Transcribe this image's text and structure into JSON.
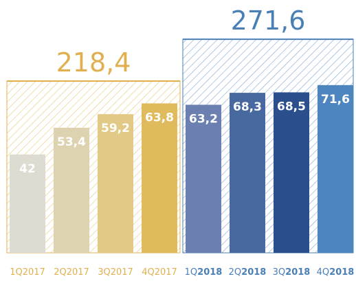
{
  "chart_data": {
    "type": "bar",
    "series": [
      {
        "categories": [
          "1Q2017",
          "2Q2017",
          "3Q2017",
          "4Q2017"
        ],
        "values": [
          42,
          53.4,
          59.2,
          63.8
        ],
        "value_labels": [
          "42",
          "53,4",
          "59,2",
          "63,8"
        ],
        "colors": [
          "#dedbd0",
          "#ddd3b1",
          "#e2c985",
          "#e0bb5d"
        ],
        "total": 218.4,
        "total_label": "218,4",
        "color": "#e0b050"
      },
      {
        "categories": [
          "1Q2018",
          "2Q2018",
          "3Q2018",
          "4Q2018"
        ],
        "values": [
          63.2,
          68.3,
          68.5,
          71.6
        ],
        "value_labels": [
          "63,2",
          "68,3",
          "68,5",
          "71,6"
        ],
        "colors": [
          "#6b80b0",
          "#4868a0",
          "#2b4f8c",
          "#4d86bf"
        ],
        "total": 271.6,
        "total_label": "271,6",
        "color": "#4a7fb5"
      }
    ]
  }
}
